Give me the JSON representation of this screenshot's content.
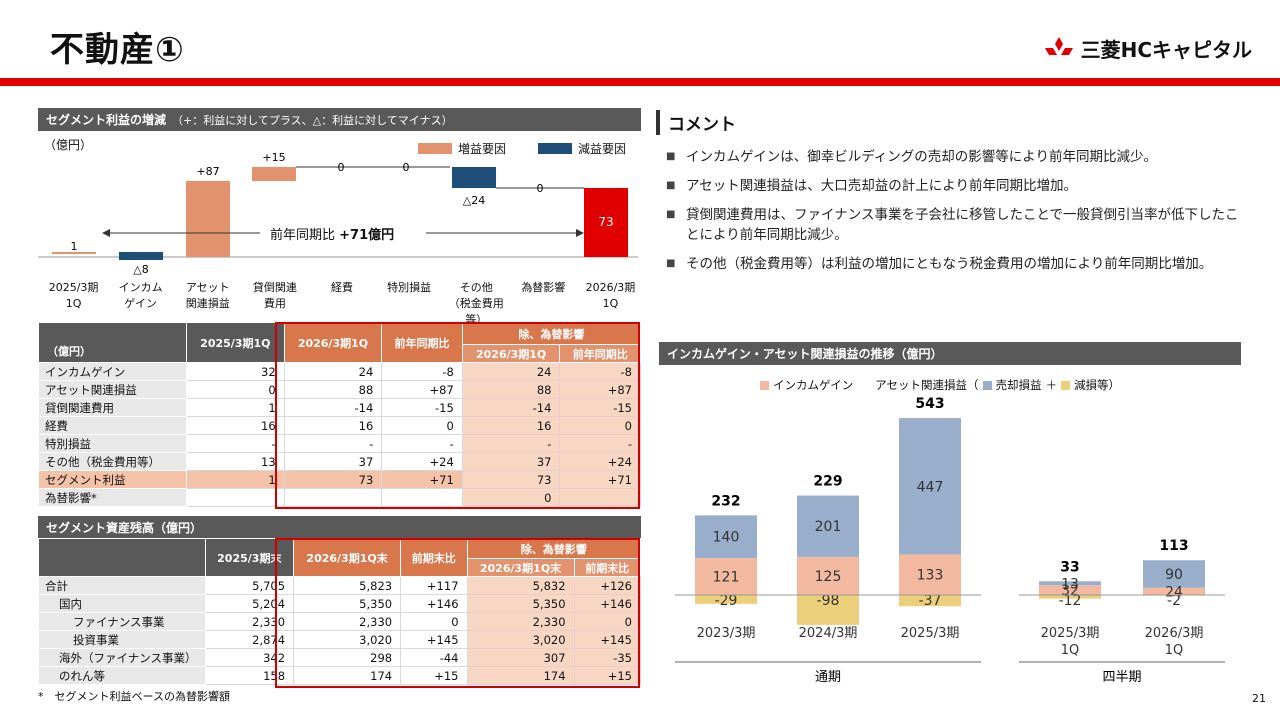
{
  "header": {
    "title": "不動産①",
    "brand": "三菱HCキャピタル",
    "page_num": "21"
  },
  "waterfall": {
    "section_title": "セグメント利益の増減",
    "section_sub": "（+：利益に対してプラス、△：利益に対してマイナス）",
    "unit": "（億円）",
    "legend": {
      "inc": "増益要因",
      "dec": "減益要因"
    },
    "colors": {
      "inc": "#e2936e",
      "dec": "#1f4e79",
      "total": "#e00000",
      "start": "#e2936e"
    },
    "delta_text": "前年同期比",
    "delta_val": "+71億円",
    "categories": [
      "2025/3期\n1Q",
      "インカム\nゲイン",
      "アセット\n関連損益",
      "貸倒関連\n費用",
      "経費",
      "特別損益",
      "その他\n（税金費用等）",
      "為替影響",
      "2026/3期\n1Q"
    ],
    "labels": [
      "1",
      "△8",
      "+87",
      "+15",
      "0",
      "0",
      "△24",
      "0",
      "73"
    ]
  },
  "pl_table": {
    "unit": "（億円）",
    "h_2025": "2025/3期1Q",
    "h_2026": "2026/3期1Q",
    "h_yoy": "前年同期比",
    "h_excl": "除、為替影響",
    "h_excl_2026": "2026/3期1Q",
    "h_excl_yoy": "前年同期比",
    "rows": [
      {
        "label": "インカムゲイン",
        "a": "32",
        "b": "24",
        "c": "-8",
        "d": "24",
        "e": "-8"
      },
      {
        "label": "アセット関連損益",
        "a": "0",
        "b": "88",
        "c": "+87",
        "d": "88",
        "e": "+87"
      },
      {
        "label": "貸倒関連費用",
        "a": "1",
        "b": "-14",
        "c": "-15",
        "d": "-14",
        "e": "-15"
      },
      {
        "label": "経費",
        "a": "16",
        "b": "16",
        "c": "0",
        "d": "16",
        "e": "0"
      },
      {
        "label": "特別損益",
        "a": "-",
        "b": "-",
        "c": "-",
        "d": "-",
        "e": "-"
      },
      {
        "label": "その他（税金費用等）",
        "a": "13",
        "b": "37",
        "c": "+24",
        "d": "37",
        "e": "+24"
      },
      {
        "label": "セグメント利益",
        "a": "1",
        "b": "73",
        "c": "+71",
        "d": "73",
        "e": "+71"
      },
      {
        "label": "為替影響*",
        "a": "",
        "b": "",
        "c": "",
        "d": "0",
        "e": ""
      }
    ]
  },
  "bs_table": {
    "section_title": "セグメント資産残高（億円）",
    "h_2025": "2025/3期末",
    "h_2026": "2026/3期1Q末",
    "h_vs": "前期末比",
    "h_excl": "除、為替影響",
    "h_excl_2026": "2026/3期1Q末",
    "h_excl_vs": "前期末比",
    "rows": [
      {
        "label": "合計",
        "a": "5,705",
        "b": "5,823",
        "c": "+117",
        "d": "5,832",
        "e": "+126",
        "indent": 0
      },
      {
        "label": "国内",
        "a": "5,204",
        "b": "5,350",
        "c": "+146",
        "d": "5,350",
        "e": "+146",
        "indent": 1
      },
      {
        "label": "ファイナンス事業",
        "a": "2,330",
        "b": "2,330",
        "c": "0",
        "d": "2,330",
        "e": "0",
        "indent": 2
      },
      {
        "label": "投資事業",
        "a": "2,874",
        "b": "3,020",
        "c": "+145",
        "d": "3,020",
        "e": "+145",
        "indent": 2
      },
      {
        "label": "海外（ファイナンス事業）",
        "a": "342",
        "b": "298",
        "c": "-44",
        "d": "307",
        "e": "-35",
        "indent": 1
      },
      {
        "label": "のれん等",
        "a": "158",
        "b": "174",
        "c": "+15",
        "d": "174",
        "e": "+15",
        "indent": 1
      }
    ],
    "footnote": "*　セグメント利益ベースの為替影響額"
  },
  "comments": {
    "title": "コメント",
    "items": [
      "インカムゲインは、御幸ビルディングの売却の影響等により前年同期比減少。",
      "アセット関連損益は、大口売却益の計上により前年同期比増加。",
      "貸倒関連費用は、ファイナンス事業を子会社に移管したことで一般貸倒引当率が低下したことにより前年同期比減少。",
      "その他（税金費用等）は利益の増加にともなう税金費用の増加により前年同期比増加。"
    ]
  },
  "chart_data": {
    "type": "bar",
    "title": "インカムゲイン・アセット関連損益の推移（億円）",
    "legend": {
      "income": "インカムゲイン",
      "asset_prefix": "アセット関連損益（",
      "sale": "売却損益",
      "plus": "＋",
      "impair": "減損等）"
    },
    "colors": {
      "income": "#f2b8a0",
      "sale": "#98aecb",
      "impair": "#eccf7a"
    },
    "groups": [
      {
        "name": "通期",
        "categories": [
          "2023/3期",
          "2024/3期",
          "2025/3期"
        ],
        "income": [
          121,
          125,
          133
        ],
        "sale": [
          140,
          201,
          447
        ],
        "impair": [
          -29,
          -98,
          -37
        ],
        "total": [
          232,
          229,
          543
        ]
      },
      {
        "name": "四半期",
        "categories": [
          "2025/3期\n1Q",
          "2026/3期\n1Q"
        ],
        "income": [
          32,
          24
        ],
        "sale": [
          13,
          90
        ],
        "impair": [
          -12,
          -2
        ],
        "total": [
          33,
          113
        ]
      }
    ]
  }
}
